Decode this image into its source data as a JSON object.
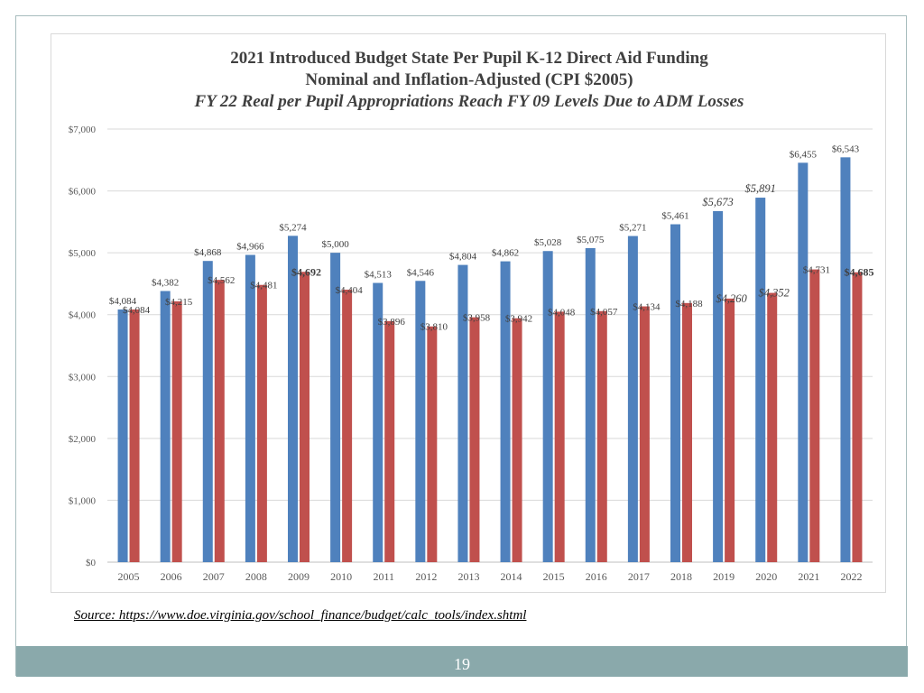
{
  "slide": {
    "source": "Source: https://www.doe.virginia.gov/school_finance/budget/calc_tools/index.shtml",
    "page_number": "19"
  },
  "colors": {
    "nominal": "#4f81bd",
    "real": "#c0504d",
    "footer": "#8aa9ab",
    "grid": "#d9d9d9"
  },
  "chart_data": {
    "type": "bar",
    "title": "2021 Introduced Budget State Per Pupil K-12 Direct Aid Funding",
    "subtitle": "Nominal and Inflation-Adjusted (CPI $2005)",
    "subtitle2": "FY 22 Real per Pupil Appropriations Reach FY 09 Levels Due to ADM Losses",
    "xlabel": "",
    "ylabel": "",
    "ylim": [
      0,
      7000
    ],
    "yticks": [
      0,
      1000,
      2000,
      3000,
      4000,
      5000,
      6000,
      7000
    ],
    "ytick_labels": [
      "$0",
      "$1,000",
      "$2,000",
      "$3,000",
      "$4,000",
      "$5,000",
      "$6,000",
      "$7,000"
    ],
    "grid": true,
    "categories": [
      "2005",
      "2006",
      "2007",
      "2008",
      "2009",
      "2010",
      "2011",
      "2012",
      "2013",
      "2014",
      "2015",
      "2016",
      "2017",
      "2018",
      "2019",
      "2020",
      "2021",
      "2022"
    ],
    "series": [
      {
        "name": "Nominal",
        "values": [
          4084,
          4382,
          4868,
          4966,
          5274,
          5000,
          4513,
          4546,
          4804,
          4862,
          5028,
          5075,
          5271,
          5461,
          5673,
          5891,
          6455,
          6543
        ],
        "labels": [
          "$4,084",
          "$4,382",
          "$4,868",
          "$4,966",
          "$5,274",
          "$5,000",
          "$4,513",
          "$4,546",
          "$4,804",
          "$4,862",
          "$5,028",
          "$5,075",
          "$5,271",
          "$5,461",
          "$5,673",
          "$5,891",
          "$6,455",
          "$6,543"
        ],
        "italic_labels": [
          14,
          15
        ]
      },
      {
        "name": "Inflation-Adjusted",
        "values": [
          4084,
          4215,
          4562,
          4481,
          4692,
          4404,
          3896,
          3810,
          3958,
          3942,
          4048,
          4057,
          4134,
          4188,
          4260,
          4352,
          4731,
          4685
        ],
        "labels": [
          "$4,084",
          "$4,215",
          "$4,562",
          "$4,481",
          "$4,692",
          "$4,404",
          "$3,896",
          "$3,810",
          "$3,958",
          "$3,942",
          "$4,048",
          "$4,057",
          "$4,134",
          "$4,188",
          "$4,260",
          "$4,352",
          "$4,731",
          "$4,685"
        ],
        "bold_labels": [
          4,
          17
        ],
        "italic_labels": [
          14,
          15
        ]
      }
    ]
  }
}
